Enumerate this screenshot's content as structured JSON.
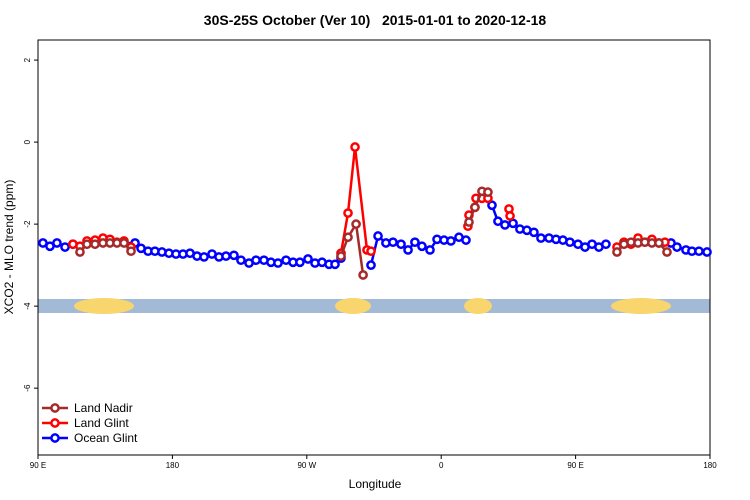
{
  "chart_data": {
    "type": "line",
    "title": "30S-25S October (Ver 10)   2015-01-01 to 2020-12-18",
    "xlabel": "Longitude",
    "ylabel": "XCO2 - MLO trend (ppm)",
    "xlim": [
      90,
      540
    ],
    "ylim": [
      2.49,
      -7.63
    ],
    "xticks": [
      {
        "value": 90,
        "label": "90 E"
      },
      {
        "value": 180,
        "label": "180"
      },
      {
        "value": 270,
        "label": "90 W"
      },
      {
        "value": 360,
        "label": "0"
      },
      {
        "value": 450,
        "label": "90 E"
      },
      {
        "value": 540,
        "label": "180"
      }
    ],
    "yticks": [
      2,
      0,
      -2,
      -4,
      -6
    ],
    "legend": "bottom-left",
    "series": [
      {
        "name": "Land Nadir",
        "color": "#a52a2a",
        "x": [
          118.1,
          122.8,
          128.2,
          133.5,
          138.2,
          142.9,
          147.6,
          152.3,
          null,
          292.9,
          297.6,
          303.0,
          307.7,
          null,
          378.6,
          382.6,
          387.3,
          391.3,
          null,
          477.7,
          482.4,
          487.1,
          491.8,
          496.4,
          501.1,
          505.8,
          511.2
        ],
        "values": [
          -2.68,
          -2.49,
          -2.49,
          -2.46,
          -2.46,
          -2.46,
          -2.46,
          -2.66,
          null,
          -2.78,
          -2.32,
          -2.0,
          -3.24,
          null,
          -1.95,
          -1.59,
          -1.2,
          -1.22,
          null,
          -2.68,
          -2.49,
          -2.44,
          -2.46,
          -2.44,
          -2.46,
          -2.46,
          -2.68
        ]
      },
      {
        "name": "Land Glint",
        "color": "#ff0000",
        "x": [
          113.4,
          118.1,
          122.8,
          128.2,
          133.5,
          138.2,
          142.9,
          147.6,
          152.3,
          null,
          292.9,
          297.6,
          302.3,
          310.3,
          313.0,
          null,
          377.9,
          378.6,
          382.6,
          383.3,
          387.3,
          391.3,
          null,
          405.4,
          406.1,
          null,
          477.7,
          482.4,
          487.1,
          491.8,
          496.4,
          501.1,
          505.8,
          509.8
        ],
        "values": [
          -2.49,
          -2.54,
          -2.41,
          -2.39,
          -2.34,
          -2.37,
          -2.44,
          -2.41,
          -2.56,
          null,
          -2.71,
          -1.73,
          -0.12,
          -2.63,
          -2.66,
          null,
          -2.05,
          -1.78,
          -1.59,
          -1.37,
          -1.37,
          -1.37,
          null,
          -1.63,
          -1.8,
          null,
          -2.56,
          -2.44,
          -2.49,
          -2.34,
          -2.44,
          -2.37,
          -2.46,
          -2.44
        ]
      },
      {
        "name": "Ocean Glint",
        "color": "#0000ff",
        "x": [
          93.3,
          98.0,
          102.7,
          108.1,
          113.4,
          155.0,
          159.0,
          163.7,
          168.3,
          173.0,
          177.7,
          182.4,
          187.1,
          191.8,
          196.5,
          201.2,
          206.5,
          211.2,
          215.9,
          221.2,
          225.9,
          231.3,
          236.0,
          241.3,
          246.0,
          250.7,
          256.1,
          260.8,
          265.4,
          270.8,
          275.5,
          280.2,
          284.9,
          288.9,
          292.9,
          null,
          313.0,
          317.7,
          323.0,
          327.7,
          333.1,
          337.8,
          342.4,
          347.1,
          352.5,
          357.2,
          361.9,
          366.5,
          371.9,
          376.6,
          null,
          394.0,
          398.0,
          402.7,
          408.1,
          412.7,
          417.4,
          422.1,
          426.8,
          432.2,
          436.9,
          441.5,
          446.2,
          451.6,
          456.3,
          461.0,
          465.6,
          470.3,
          null,
          513.9,
          517.9,
          523.9,
          527.9,
          532.6,
          538.0
        ],
        "values": [
          -2.46,
          -2.54,
          -2.46,
          -2.56,
          -2.49,
          -2.46,
          -2.59,
          -2.66,
          -2.66,
          -2.68,
          -2.71,
          -2.73,
          -2.73,
          -2.71,
          -2.78,
          -2.8,
          -2.73,
          -2.8,
          -2.78,
          -2.76,
          -2.88,
          -2.95,
          -2.88,
          -2.88,
          -2.93,
          -2.95,
          -2.88,
          -2.93,
          -2.93,
          -2.85,
          -2.95,
          -2.93,
          -2.98,
          -2.98,
          -2.83,
          null,
          -3.0,
          -2.29,
          -2.46,
          -2.44,
          -2.49,
          -2.63,
          -2.44,
          -2.54,
          -2.63,
          -2.37,
          -2.39,
          -2.41,
          -2.32,
          -2.39,
          null,
          -1.54,
          -1.93,
          -2.02,
          -1.98,
          -2.12,
          -2.15,
          -2.2,
          -2.34,
          -2.34,
          -2.37,
          -2.39,
          -2.44,
          -2.49,
          -2.56,
          -2.49,
          -2.56,
          -2.49,
          null,
          -2.46,
          -2.56,
          -2.63,
          -2.66,
          -2.66,
          -2.68
        ]
      }
    ]
  }
}
